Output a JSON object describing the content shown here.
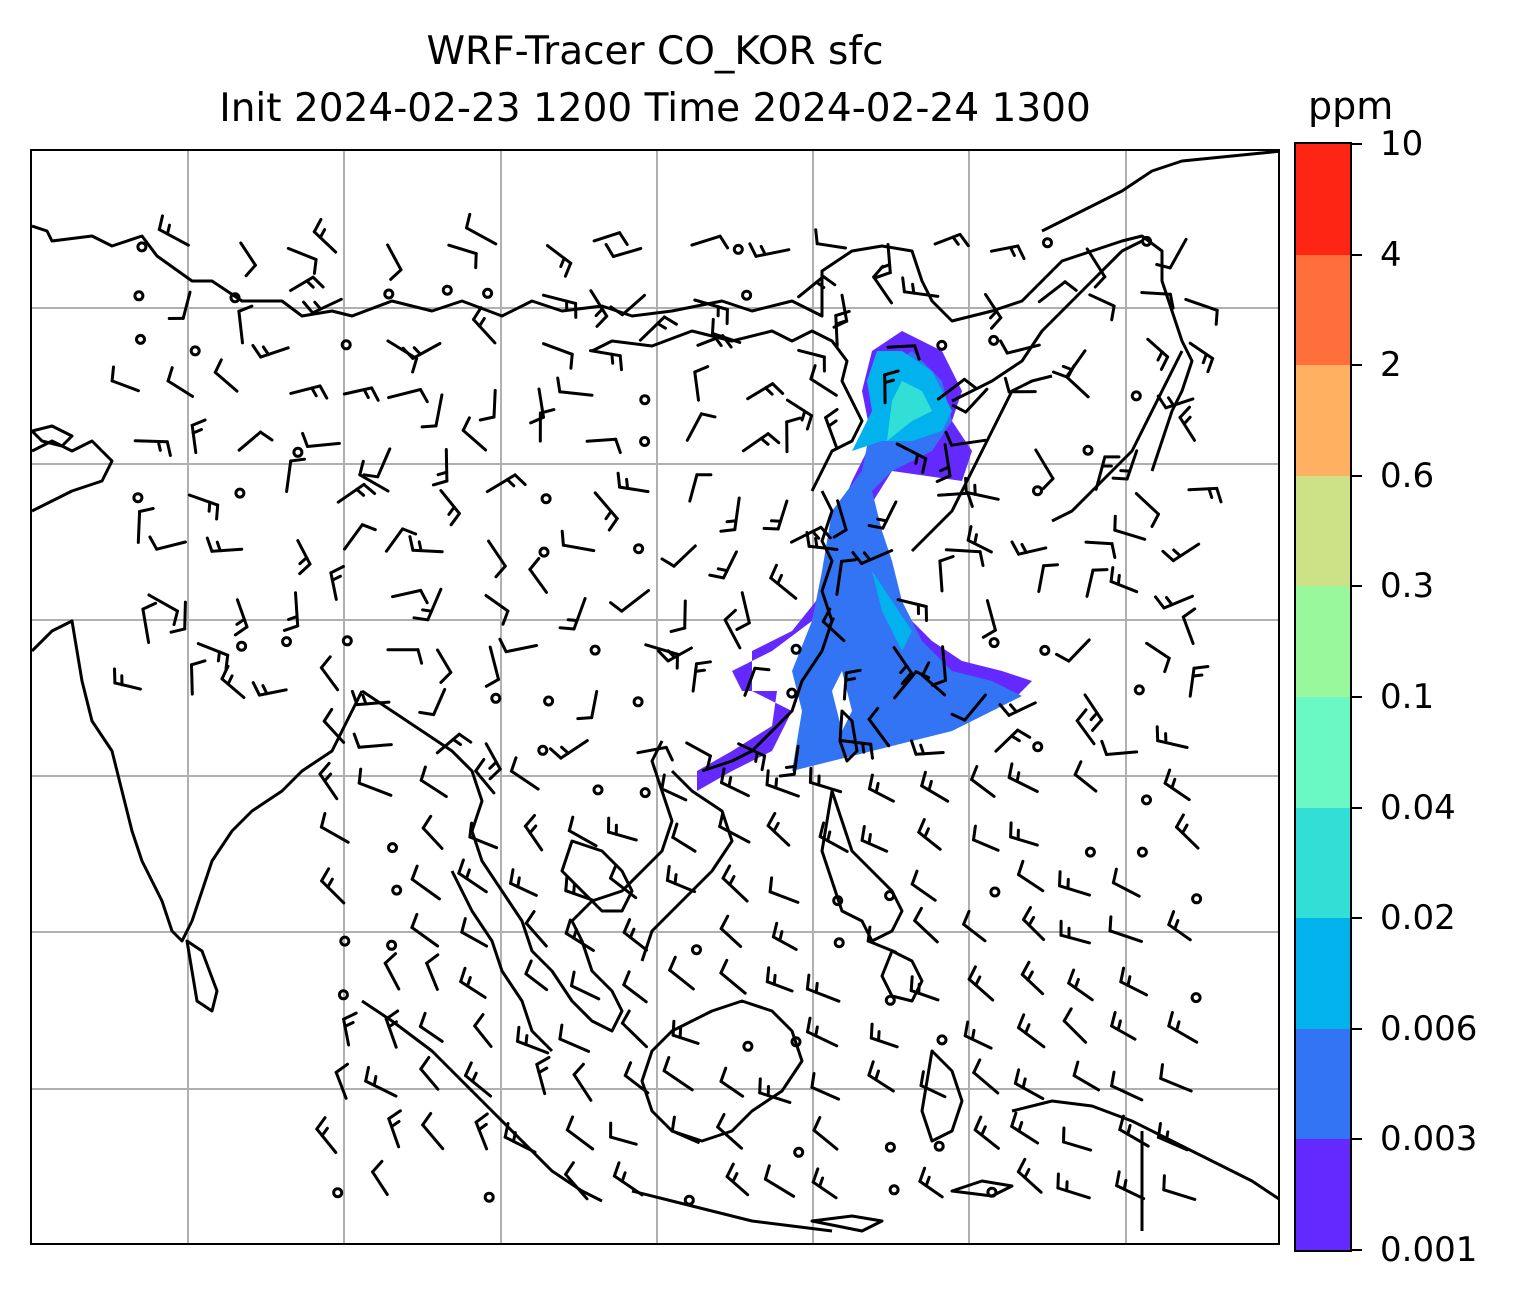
{
  "title": {
    "line1": "WRF-Tracer CO_KOR sfc",
    "line2": "Init 2024-02-23 1200 Time 2024-02-24 1300"
  },
  "colorbar": {
    "unit": "ppm",
    "levels": [
      "0.001",
      "0.003",
      "0.006",
      "0.02",
      "0.04",
      "0.1",
      "0.3",
      "0.6",
      "2",
      "4",
      "10"
    ],
    "colors": [
      "#6429ff",
      "#3274f4",
      "#02b2ed",
      "#31dfd6",
      "#6af9c4",
      "#99f89b",
      "#cde287",
      "#ffb061",
      "#ff6f3c",
      "#ff2515"
    ]
  },
  "map": {
    "grid": true,
    "overlay": "wind barbs",
    "plume_color_key": [
      "#6429ff",
      "#3274f4",
      "#02b2ed",
      "#31dfd6"
    ]
  }
}
